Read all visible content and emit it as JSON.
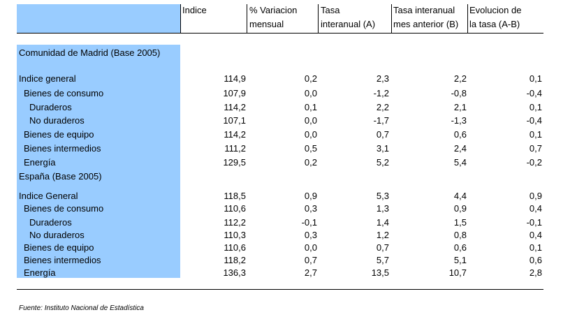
{
  "header": {
    "col_indice": "Indice",
    "col_var_l1": "% Variacion",
    "col_var_l2": "mensual",
    "col_tasa_l1": "Tasa",
    "col_tasa_l2": "interanual (A)",
    "col_tasa_ant_l1": "Tasa interanual",
    "col_tasa_ant_l2": "mes anterior (B)",
    "col_evol_l1": "Evolucion de",
    "col_evol_l2": "la tasa (A-B)"
  },
  "madrid": {
    "section_title": "Comunidad de Madrid (Base 2005)",
    "rows": [
      {
        "label": "Indice general",
        "indice": "114,9",
        "var": "0,2",
        "tasa": "2,3",
        "tasa_ant": "2,2",
        "evol": "0,1"
      },
      {
        "label": "Bienes de consumo",
        "indice": "107,9",
        "var": "0,0",
        "tasa": "-1,2",
        "tasa_ant": "-0,8",
        "evol": "-0,4"
      },
      {
        "label": "Duraderos",
        "indice": "114,2",
        "var": "0,1",
        "tasa": "2,2",
        "tasa_ant": "2,1",
        "evol": "0,1"
      },
      {
        "label": "No duraderos",
        "indice": "107,1",
        "var": "0,0",
        "tasa": "-1,7",
        "tasa_ant": "-1,3",
        "evol": "-0,4"
      },
      {
        "label": "Bienes de equipo",
        "indice": "114,2",
        "var": "0,0",
        "tasa": "0,7",
        "tasa_ant": "0,6",
        "evol": "0,1"
      },
      {
        "label": "Bienes intermedios",
        "indice": "111,2",
        "var": "0,5",
        "tasa": "3,1",
        "tasa_ant": "2,4",
        "evol": "0,7"
      },
      {
        "label": "Energía",
        "indice": "129,5",
        "var": "0,2",
        "tasa": "5,2",
        "tasa_ant": "5,4",
        "evol": "-0,2"
      }
    ]
  },
  "espana": {
    "section_title": "España (Base 2005)",
    "rows": [
      {
        "label": "Indice General",
        "indice": "118,5",
        "var": "0,9",
        "tasa": "5,3",
        "tasa_ant": "4,4",
        "evol": "0,9"
      },
      {
        "label": "Bienes de consumo",
        "indice": "110,6",
        "var": "0,3",
        "tasa": "1,3",
        "tasa_ant": "0,9",
        "evol": "0,4"
      },
      {
        "label": "Duraderos",
        "indice": "112,2",
        "var": "-0,1",
        "tasa": "1,4",
        "tasa_ant": "1,5",
        "evol": "-0,1"
      },
      {
        "label": "No duraderos",
        "indice": "110,3",
        "var": "0,3",
        "tasa": "1,2",
        "tasa_ant": "0,8",
        "evol": "0,4"
      },
      {
        "label": "Bienes de equipo",
        "indice": "110,6",
        "var": "0,0",
        "tasa": "0,7",
        "tasa_ant": "0,6",
        "evol": "0,1"
      },
      {
        "label": "Bienes intermedios",
        "indice": "118,2",
        "var": "0,7",
        "tasa": "5,7",
        "tasa_ant": "5,1",
        "evol": "0,6"
      },
      {
        "label": "Energía",
        "indice": "136,3",
        "var": "2,7",
        "tasa": "13,5",
        "tasa_ant": "10,7",
        "evol": "2,8"
      }
    ]
  },
  "footer": {
    "source": "Fuente: Instituto Nacional de Estadística"
  }
}
